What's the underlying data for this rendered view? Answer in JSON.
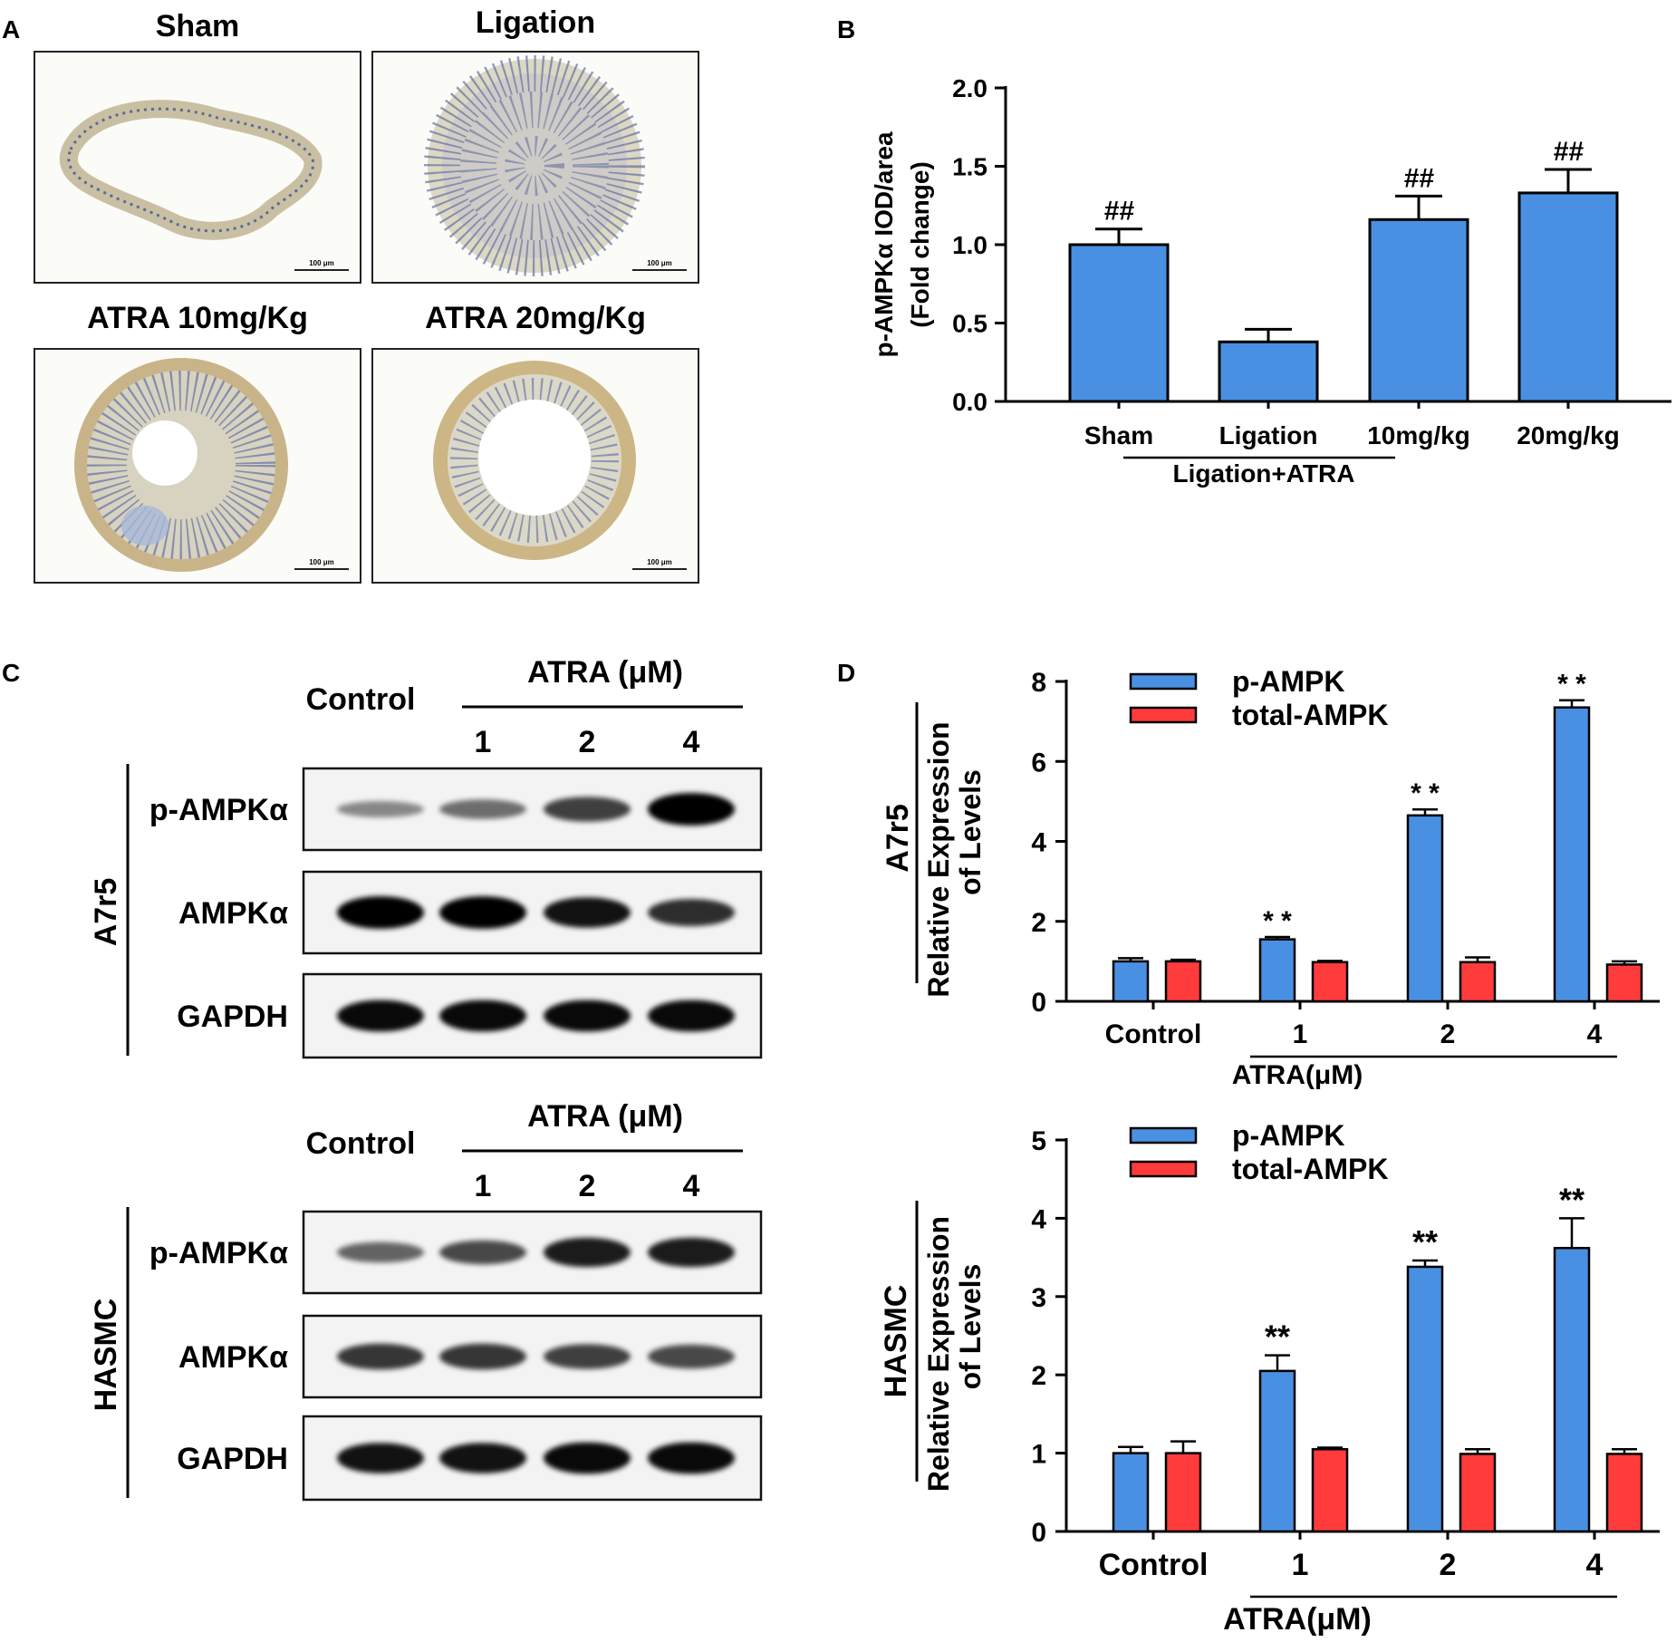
{
  "panels": {
    "a": {
      "letter": "A",
      "images": [
        {
          "title": "Sham",
          "scale": "100 μm"
        },
        {
          "title": "Ligation",
          "scale": "100 μm"
        },
        {
          "title": "ATRA 10mg/Kg",
          "scale": "100 μm"
        },
        {
          "title": "ATRA 20mg/Kg",
          "scale": "100 μm"
        }
      ]
    },
    "b": {
      "letter": "B",
      "group_label": "Ligation+ATRA"
    },
    "c": {
      "letter": "C",
      "blots": [
        {
          "cell_line": "A7r5",
          "control_label": "Control",
          "treatment_label": "ATRA (μM)",
          "doses": [
            "1",
            "2",
            "4"
          ],
          "rows": [
            "p-AMPKα",
            "AMPKα",
            "GAPDH"
          ]
        },
        {
          "cell_line": "HASMC",
          "control_label": "Control",
          "treatment_label": "ATRA (μM)",
          "doses": [
            "1",
            "2",
            "4"
          ],
          "rows": [
            "p-AMPKα",
            "AMPKα",
            "GAPDH"
          ]
        }
      ]
    },
    "d": {
      "letter": "D",
      "group_label": "ATRA(μM)"
    }
  },
  "chart_data": [
    {
      "id": "panel-b",
      "type": "bar",
      "categories": [
        "Sham",
        "Ligation",
        "10mg/kg",
        "20mg/kg"
      ],
      "values": [
        1.0,
        0.38,
        1.16,
        1.33
      ],
      "errors": [
        0.1,
        0.08,
        0.15,
        0.15
      ],
      "annotations": [
        "##",
        "",
        "##",
        "##"
      ],
      "ylabel": "p-AMPKα IOD/area",
      "ylabel2": "(Fold change)",
      "ylim": [
        0,
        2.0
      ],
      "yticks": [
        "0.0",
        "0.5",
        "1.0",
        "1.5",
        "2.0"
      ],
      "color": "#4a90e2"
    },
    {
      "id": "panel-d-a7r5",
      "type": "bar",
      "side_label": "A7r5",
      "categories": [
        "Control",
        "1",
        "2",
        "4"
      ],
      "series": [
        {
          "name": "p-AMPK",
          "color": "#4a90e2",
          "values": [
            1.0,
            1.55,
            4.65,
            7.35
          ],
          "errors": [
            0.08,
            0.06,
            0.15,
            0.18
          ]
        },
        {
          "name": "total-AMPK",
          "color": "#ff3b3b",
          "values": [
            1.0,
            0.98,
            0.98,
            0.92
          ],
          "errors": [
            0.04,
            0.03,
            0.12,
            0.08
          ]
        }
      ],
      "annotations": [
        "",
        "* *",
        "* *",
        "* *"
      ],
      "ylabel": "Relative Expression",
      "ylabel2": "of Levels",
      "ylim": [
        0,
        8
      ],
      "yticks": [
        "0",
        "2",
        "4",
        "6",
        "8"
      ],
      "legend": "top-left"
    },
    {
      "id": "panel-d-hasmc",
      "type": "bar",
      "side_label": "HASMC",
      "categories": [
        "Control",
        "1",
        "2",
        "4"
      ],
      "series": [
        {
          "name": "p-AMPK",
          "color": "#4a90e2",
          "values": [
            1.0,
            2.05,
            3.38,
            3.62
          ],
          "errors": [
            0.08,
            0.2,
            0.08,
            0.38
          ]
        },
        {
          "name": "total-AMPK",
          "color": "#ff3b3b",
          "values": [
            1.0,
            1.05,
            0.99,
            0.99
          ],
          "errors": [
            0.15,
            0.02,
            0.06,
            0.06
          ]
        }
      ],
      "annotations": [
        "",
        "**",
        "**",
        "**"
      ],
      "ylabel": "Relative Expression",
      "ylabel2": "of Levels",
      "ylim": [
        0,
        5
      ],
      "yticks": [
        "0",
        "1",
        "2",
        "3",
        "4",
        "5"
      ],
      "legend": "top-left"
    }
  ]
}
